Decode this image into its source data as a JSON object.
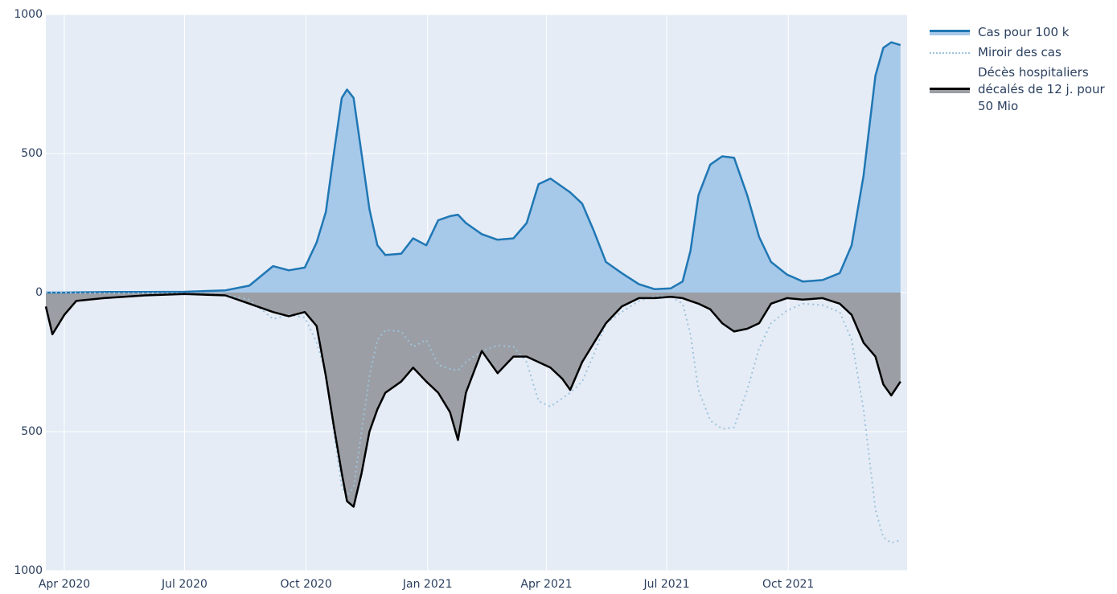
{
  "chart_data": {
    "type": "area",
    "x": [
      "2020-03-18",
      "2020-03-23",
      "2020-04-01",
      "2020-04-10",
      "2020-05-01",
      "2020-06-01",
      "2020-07-01",
      "2020-08-01",
      "2020-08-19",
      "2020-09-06",
      "2020-09-18",
      "2020-09-30",
      "2020-10-09",
      "2020-10-16",
      "2020-10-22",
      "2020-10-28",
      "2020-11-01",
      "2020-11-06",
      "2020-11-12",
      "2020-11-18",
      "2020-11-24",
      "2020-11-30",
      "2020-12-12",
      "2020-12-21",
      "2020-12-31",
      "2021-01-09",
      "2021-01-18",
      "2021-01-24",
      "2021-01-30",
      "2021-02-11",
      "2021-02-23",
      "2021-03-07",
      "2021-03-17",
      "2021-03-26",
      "2021-04-04",
      "2021-04-13",
      "2021-04-19",
      "2021-04-28",
      "2021-05-07",
      "2021-05-16",
      "2021-05-28",
      "2021-06-10",
      "2021-06-22",
      "2021-07-04",
      "2021-07-13",
      "2021-07-19",
      "2021-07-25",
      "2021-08-03",
      "2021-08-12",
      "2021-08-21",
      "2021-08-31",
      "2021-09-09",
      "2021-09-18",
      "2021-09-30",
      "2021-10-12",
      "2021-10-27",
      "2021-11-09",
      "2021-11-18",
      "2021-11-27",
      "2021-12-06",
      "2021-12-12",
      "2021-12-18",
      "2021-12-25"
    ],
    "series": [
      {
        "name": "Cas pour 100 k",
        "color": "#1f77b4",
        "fill": "#a6c8e9",
        "style": "solid",
        "values": [
          0,
          0,
          0,
          1,
          2,
          2,
          3,
          8,
          25,
          95,
          80,
          90,
          180,
          290,
          500,
          700,
          730,
          700,
          500,
          300,
          170,
          135,
          140,
          195,
          170,
          260,
          275,
          280,
          250,
          210,
          190,
          195,
          250,
          390,
          410,
          380,
          360,
          320,
          220,
          110,
          70,
          30,
          12,
          15,
          40,
          150,
          350,
          460,
          490,
          485,
          350,
          200,
          110,
          65,
          40,
          45,
          70,
          170,
          420,
          780,
          880,
          900,
          890
        ]
      },
      {
        "name": "Miroir des cas",
        "color": "#9ec3dd",
        "style": "dotted",
        "values": [
          0,
          0,
          0,
          -1,
          -2,
          -2,
          -3,
          -8,
          -25,
          -95,
          -80,
          -90,
          -180,
          -290,
          -500,
          -700,
          -730,
          -700,
          -500,
          -300,
          -170,
          -135,
          -140,
          -195,
          -170,
          -260,
          -275,
          -280,
          -250,
          -210,
          -190,
          -195,
          -250,
          -390,
          -410,
          -380,
          -360,
          -320,
          -220,
          -110,
          -70,
          -30,
          -12,
          -15,
          -40,
          -150,
          -350,
          -460,
          -490,
          -485,
          -350,
          -200,
          -110,
          -65,
          -40,
          -45,
          -70,
          -170,
          -420,
          -780,
          -880,
          -900,
          -890
        ]
      },
      {
        "name": "Décès hospitaliers décalés de 12 j. pour 50 Mio",
        "color": "#000000",
        "fill": "#9b9ea4",
        "style": "solid",
        "values": [
          -50,
          -150,
          -80,
          -30,
          -20,
          -10,
          -5,
          -10,
          -40,
          -70,
          -85,
          -70,
          -120,
          -300,
          -480,
          -650,
          -750,
          -770,
          -650,
          -500,
          -420,
          -360,
          -320,
          -270,
          -320,
          -360,
          -430,
          -530,
          -360,
          -210,
          -290,
          -230,
          -230,
          -250,
          -270,
          -310,
          -350,
          -250,
          -180,
          -110,
          -50,
          -20,
          -20,
          -15,
          -20,
          -30,
          -40,
          -60,
          -110,
          -140,
          -130,
          -110,
          -40,
          -20,
          -25,
          -20,
          -40,
          -80,
          -180,
          -230,
          -330,
          -370,
          -320
        ]
      }
    ],
    "xlim": [
      "2020-03-18",
      "2021-12-30"
    ],
    "xticks": [
      {
        "value": "2020-04-01",
        "label": "Apr 2020"
      },
      {
        "value": "2020-07-01",
        "label": "Jul 2020"
      },
      {
        "value": "2020-10-01",
        "label": "Oct 2020"
      },
      {
        "value": "2021-01-01",
        "label": "Jan 2021"
      },
      {
        "value": "2021-04-01",
        "label": "Apr 2021"
      },
      {
        "value": "2021-07-01",
        "label": "Jul 2021"
      },
      {
        "value": "2021-10-01",
        "label": "Oct 2021"
      }
    ],
    "ylim": [
      -1000,
      1000
    ],
    "yticks": [
      1000,
      500,
      0,
      {
        "value": -500,
        "label": "500"
      },
      {
        "value": -1000,
        "label": "1000"
      }
    ],
    "grid": true,
    "legend": "right"
  }
}
